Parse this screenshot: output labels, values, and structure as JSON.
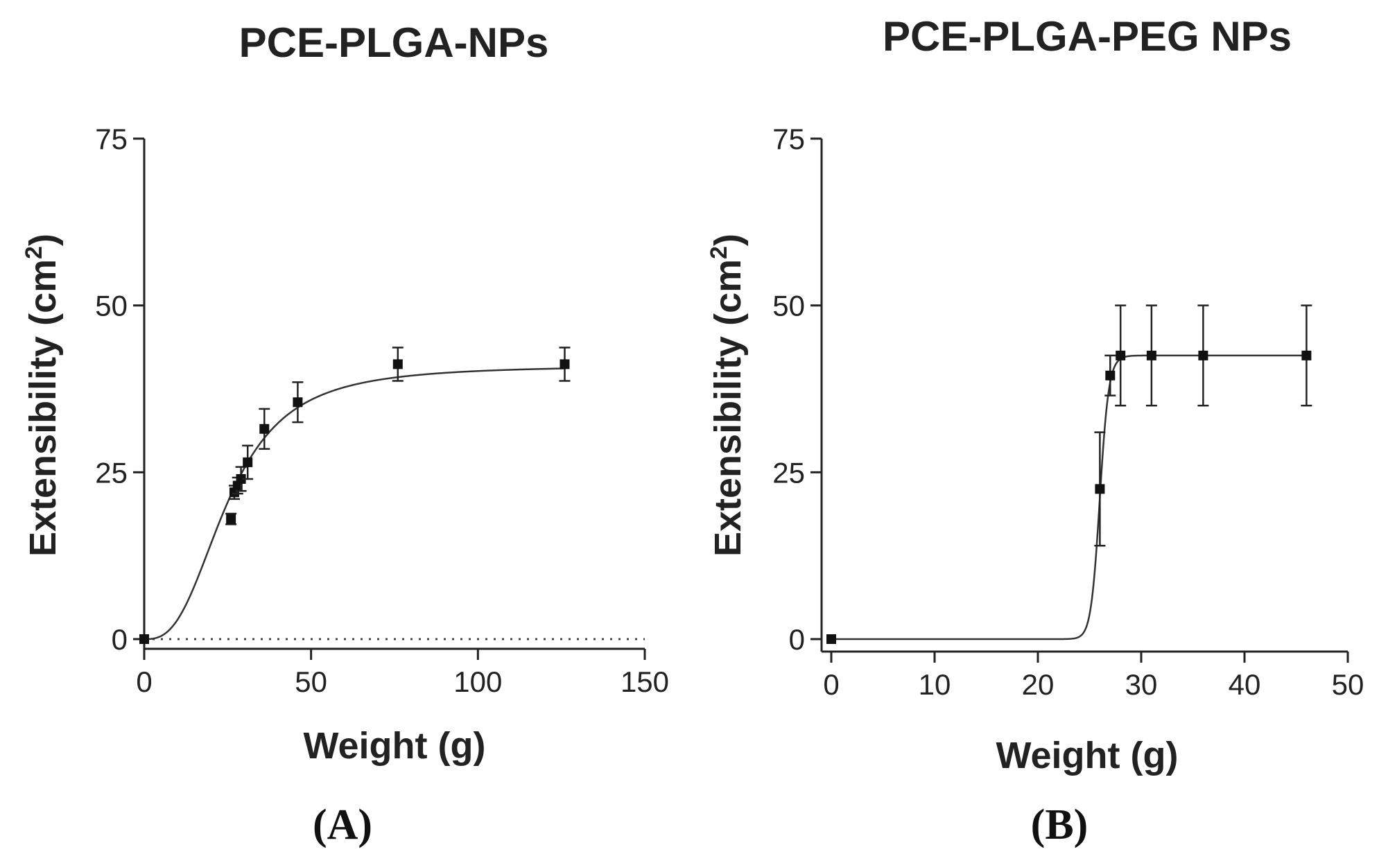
{
  "chart_data": [
    {
      "type": "line",
      "panel_label": "(A)",
      "title": "PCE-PLGA-NPs",
      "xlabel": "Weight (g)",
      "ylabel": "Extensibility (cm",
      "ylabel_sup": "2",
      "ylabel_close": ")",
      "xlim": [
        0,
        150
      ],
      "ylim": [
        0,
        75
      ],
      "xticks": [
        0,
        50,
        100,
        150
      ],
      "xtick_labels": [
        "0",
        "50",
        "100",
        "150"
      ],
      "yticks": [
        0,
        25,
        50,
        75
      ],
      "ytick_labels": [
        "0",
        "25",
        "50",
        "75"
      ],
      "series": [
        {
          "name": "Extensibility",
          "x": [
            0,
            26,
            27,
            28,
            29,
            31,
            36,
            46,
            76,
            126
          ],
          "y": [
            0,
            18,
            22,
            23,
            24,
            26.5,
            31.5,
            35.5,
            41.2,
            41.2
          ],
          "err": [
            0,
            0.8,
            1.0,
            1.2,
            1.8,
            2.5,
            3.0,
            3.0,
            2.5,
            2.5
          ]
        }
      ],
      "fit": {
        "model": "sigmoid",
        "top": 41,
        "ec50": 25,
        "hill": 2.8
      },
      "baseline": {
        "y": 0,
        "style": "dotted"
      }
    },
    {
      "type": "line",
      "panel_label": "(B)",
      "title": "PCE-PLGA-PEG NPs",
      "xlabel": "Weight (g)",
      "ylabel": "Extensibility (cm",
      "ylabel_sup": "2",
      "ylabel_close": ")",
      "xlim": [
        0,
        50
      ],
      "ylim": [
        0,
        75
      ],
      "xticks": [
        0,
        10,
        20,
        30,
        40,
        50
      ],
      "xtick_labels": [
        "0",
        "10",
        "20",
        "30",
        "40",
        "50"
      ],
      "yticks": [
        0,
        25,
        50,
        75
      ],
      "ytick_labels": [
        "0",
        "25",
        "50",
        "75"
      ],
      "series": [
        {
          "name": "Extensibility",
          "x": [
            0,
            26,
            27,
            28,
            31,
            36,
            46
          ],
          "y": [
            0,
            22.5,
            39.5,
            42.5,
            42.5,
            42.5,
            42.5
          ],
          "err": [
            0,
            8.5,
            3.0,
            7.5,
            7.5,
            7.5,
            7.5
          ]
        }
      ],
      "fit": {
        "model": "sigmoid",
        "top": 42.5,
        "ec50": 26,
        "hill": 60
      }
    }
  ]
}
